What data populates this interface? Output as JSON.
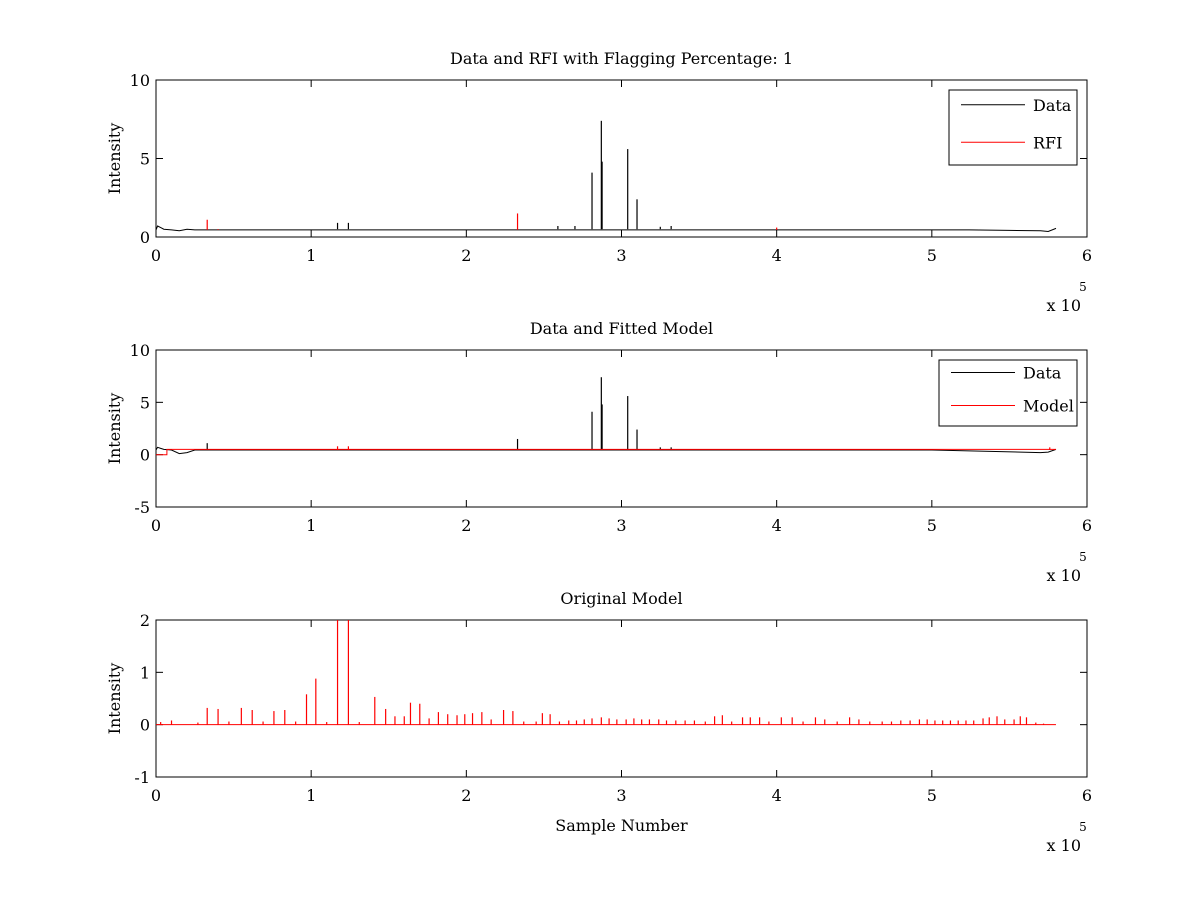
{
  "figure": {
    "background": "#ffffff",
    "axis_color": "#000000"
  },
  "chart_data": [
    {
      "type": "line",
      "title": "Data and RFI with Flagging Percentage: 1",
      "xlabel": "",
      "ylabel": "Intensity",
      "xlim": [
        0,
        6
      ],
      "ylim": [
        0,
        10
      ],
      "xticks": [
        "0",
        "1",
        "2",
        "3",
        "4",
        "5",
        "6"
      ],
      "yticks": [
        "0",
        "5",
        "10"
      ],
      "x_multiplier": {
        "base": "x 10",
        "exponent": "5"
      },
      "x_units_note": "x values in units of 10^5 samples",
      "legend": {
        "position": "top-right",
        "entries": [
          {
            "label": "Data",
            "color": "#000000"
          },
          {
            "label": "RFI",
            "color": "#ff0000"
          }
        ]
      },
      "series": [
        {
          "name": "Data",
          "color": "#000000",
          "baseline": 0.5,
          "x": [
            0.0,
            0.01,
            0.03,
            0.05,
            0.1,
            0.15,
            0.2,
            0.25,
            0.3,
            0.4,
            1.0,
            1.5,
            2.0,
            2.5,
            3.0,
            3.5,
            4.0,
            4.5,
            5.0,
            5.24,
            5.5,
            5.7,
            5.75,
            5.8
          ],
          "y": [
            0.45,
            0.7,
            0.6,
            0.5,
            0.45,
            0.4,
            0.5,
            0.45,
            0.45,
            0.45,
            0.45,
            0.45,
            0.45,
            0.45,
            0.45,
            0.45,
            0.45,
            0.45,
            0.45,
            0.45,
            0.42,
            0.4,
            0.35,
            0.55
          ],
          "spikes": [
            {
              "x": 1.17,
              "y": 0.9
            },
            {
              "x": 1.24,
              "y": 0.9
            },
            {
              "x": 2.59,
              "y": 0.7
            },
            {
              "x": 2.81,
              "y": 4.1
            },
            {
              "x": 2.87,
              "y": 7.4
            },
            {
              "x": 2.875,
              "y": 4.8
            },
            {
              "x": 3.04,
              "y": 5.6
            },
            {
              "x": 3.1,
              "y": 2.4
            },
            {
              "x": 3.25,
              "y": 0.65
            },
            {
              "x": 3.32,
              "y": 0.7
            },
            {
              "x": 2.7,
              "y": 0.7
            }
          ]
        },
        {
          "name": "RFI",
          "color": "#ff0000",
          "spikes": [
            {
              "x": 0.33,
              "y": 1.1
            },
            {
              "x": 0.4,
              "y": 0.5
            },
            {
              "x": 2.33,
              "y": 1.5
            },
            {
              "x": 4.0,
              "y": 0.6
            }
          ]
        }
      ]
    },
    {
      "type": "line",
      "title": "Data and Fitted Model",
      "xlabel": "",
      "ylabel": "Intensity",
      "xlim": [
        0,
        6
      ],
      "ylim": [
        -5,
        10
      ],
      "xticks": [
        "0",
        "1",
        "2",
        "3",
        "4",
        "5",
        "6"
      ],
      "yticks": [
        "-5",
        "0",
        "5",
        "10"
      ],
      "x_multiplier": {
        "base": "x 10",
        "exponent": "5"
      },
      "legend": {
        "position": "top-right",
        "entries": [
          {
            "label": "Data",
            "color": "#000000"
          },
          {
            "label": "Model",
            "color": "#ff0000"
          }
        ]
      },
      "series": [
        {
          "name": "Data",
          "color": "#000000",
          "baseline": 0.5,
          "x": [
            0.0,
            0.01,
            0.03,
            0.05,
            0.1,
            0.15,
            0.2,
            0.25,
            0.3,
            0.4,
            1.0,
            2.0,
            3.0,
            4.0,
            5.0,
            5.7,
            5.75,
            5.8
          ],
          "y": [
            0.45,
            0.7,
            0.6,
            0.5,
            0.45,
            0.1,
            0.2,
            0.45,
            0.45,
            0.45,
            0.45,
            0.45,
            0.45,
            0.45,
            0.45,
            0.2,
            0.25,
            0.5
          ],
          "spikes": [
            {
              "x": 0.33,
              "y": 1.1
            },
            {
              "x": 2.33,
              "y": 1.5
            },
            {
              "x": 2.81,
              "y": 4.1
            },
            {
              "x": 2.87,
              "y": 7.4
            },
            {
              "x": 2.875,
              "y": 4.8
            },
            {
              "x": 3.04,
              "y": 5.6
            },
            {
              "x": 3.1,
              "y": 2.4
            },
            {
              "x": 3.25,
              "y": 0.7
            },
            {
              "x": 3.32,
              "y": 0.7
            }
          ]
        },
        {
          "name": "Model",
          "color": "#ff0000",
          "x": [
            0.0,
            0.07,
            0.07,
            0.2,
            5.76,
            5.8
          ],
          "y": [
            0.0,
            0.0,
            0.5,
            0.5,
            0.5,
            0.5
          ],
          "spikes": [
            {
              "x": 1.17,
              "y": 0.8
            },
            {
              "x": 1.24,
              "y": 0.8
            },
            {
              "x": 5.76,
              "y": 0.7
            }
          ]
        }
      ]
    },
    {
      "type": "line",
      "title": "Original Model",
      "xlabel": "Sample Number",
      "ylabel": "Intensity",
      "xlim": [
        0,
        6
      ],
      "ylim": [
        -1,
        2
      ],
      "xticks": [
        "0",
        "1",
        "2",
        "3",
        "4",
        "5",
        "6"
      ],
      "yticks": [
        "-1",
        "0",
        "1",
        "2"
      ],
      "x_multiplier": {
        "base": "x 10",
        "exponent": "5"
      },
      "series": [
        {
          "name": "",
          "color": "#ff0000",
          "baseline": 0.0,
          "x_end": 5.8,
          "spikes": [
            {
              "x": 0.03,
              "y": 0.05
            },
            {
              "x": 0.1,
              "y": 0.08
            },
            {
              "x": 0.27,
              "y": 0.04
            },
            {
              "x": 0.33,
              "y": 0.32
            },
            {
              "x": 0.4,
              "y": 0.3
            },
            {
              "x": 0.47,
              "y": 0.06
            },
            {
              "x": 0.55,
              "y": 0.32
            },
            {
              "x": 0.62,
              "y": 0.28
            },
            {
              "x": 0.69,
              "y": 0.06
            },
            {
              "x": 0.76,
              "y": 0.26
            },
            {
              "x": 0.83,
              "y": 0.28
            },
            {
              "x": 0.9,
              "y": 0.06
            },
            {
              "x": 0.97,
              "y": 0.58
            },
            {
              "x": 1.03,
              "y": 0.88
            },
            {
              "x": 1.1,
              "y": 0.05
            },
            {
              "x": 1.17,
              "y": 2.0
            },
            {
              "x": 1.24,
              "y": 2.0
            },
            {
              "x": 1.31,
              "y": 0.05
            },
            {
              "x": 1.41,
              "y": 0.53
            },
            {
              "x": 1.48,
              "y": 0.3
            },
            {
              "x": 1.54,
              "y": 0.16
            },
            {
              "x": 1.6,
              "y": 0.16
            },
            {
              "x": 1.64,
              "y": 0.42
            },
            {
              "x": 1.7,
              "y": 0.4
            },
            {
              "x": 1.76,
              "y": 0.12
            },
            {
              "x": 1.82,
              "y": 0.24
            },
            {
              "x": 1.88,
              "y": 0.2
            },
            {
              "x": 1.94,
              "y": 0.18
            },
            {
              "x": 1.99,
              "y": 0.2
            },
            {
              "x": 2.04,
              "y": 0.22
            },
            {
              "x": 2.1,
              "y": 0.24
            },
            {
              "x": 2.16,
              "y": 0.1
            },
            {
              "x": 2.24,
              "y": 0.28
            },
            {
              "x": 2.3,
              "y": 0.26
            },
            {
              "x": 2.37,
              "y": 0.06
            },
            {
              "x": 2.45,
              "y": 0.06
            },
            {
              "x": 2.49,
              "y": 0.22
            },
            {
              "x": 2.54,
              "y": 0.2
            },
            {
              "x": 2.6,
              "y": 0.06
            },
            {
              "x": 2.66,
              "y": 0.08
            },
            {
              "x": 2.71,
              "y": 0.08
            },
            {
              "x": 2.76,
              "y": 0.1
            },
            {
              "x": 2.81,
              "y": 0.12
            },
            {
              "x": 2.87,
              "y": 0.14
            },
            {
              "x": 2.92,
              "y": 0.12
            },
            {
              "x": 2.97,
              "y": 0.1
            },
            {
              "x": 3.03,
              "y": 0.1
            },
            {
              "x": 3.08,
              "y": 0.12
            },
            {
              "x": 3.13,
              "y": 0.1
            },
            {
              "x": 3.18,
              "y": 0.1
            },
            {
              "x": 3.24,
              "y": 0.1
            },
            {
              "x": 3.29,
              "y": 0.08
            },
            {
              "x": 3.35,
              "y": 0.08
            },
            {
              "x": 3.41,
              "y": 0.08
            },
            {
              "x": 3.47,
              "y": 0.08
            },
            {
              "x": 3.54,
              "y": 0.06
            },
            {
              "x": 3.6,
              "y": 0.16
            },
            {
              "x": 3.65,
              "y": 0.18
            },
            {
              "x": 3.71,
              "y": 0.06
            },
            {
              "x": 3.78,
              "y": 0.14
            },
            {
              "x": 3.83,
              "y": 0.14
            },
            {
              "x": 3.89,
              "y": 0.14
            },
            {
              "x": 3.95,
              "y": 0.06
            },
            {
              "x": 4.03,
              "y": 0.14
            },
            {
              "x": 4.1,
              "y": 0.14
            },
            {
              "x": 4.17,
              "y": 0.06
            },
            {
              "x": 4.25,
              "y": 0.14
            },
            {
              "x": 4.31,
              "y": 0.1
            },
            {
              "x": 4.39,
              "y": 0.06
            },
            {
              "x": 4.47,
              "y": 0.14
            },
            {
              "x": 4.53,
              "y": 0.1
            },
            {
              "x": 4.6,
              "y": 0.06
            },
            {
              "x": 4.68,
              "y": 0.06
            },
            {
              "x": 4.74,
              "y": 0.06
            },
            {
              "x": 4.8,
              "y": 0.08
            },
            {
              "x": 4.86,
              "y": 0.08
            },
            {
              "x": 4.92,
              "y": 0.1
            },
            {
              "x": 4.97,
              "y": 0.1
            },
            {
              "x": 5.02,
              "y": 0.08
            },
            {
              "x": 5.07,
              "y": 0.08
            },
            {
              "x": 5.12,
              "y": 0.08
            },
            {
              "x": 5.17,
              "y": 0.08
            },
            {
              "x": 5.22,
              "y": 0.08
            },
            {
              "x": 5.27,
              "y": 0.08
            },
            {
              "x": 5.33,
              "y": 0.12
            },
            {
              "x": 5.37,
              "y": 0.14
            },
            {
              "x": 5.42,
              "y": 0.16
            },
            {
              "x": 5.47,
              "y": 0.1
            },
            {
              "x": 5.53,
              "y": 0.1
            },
            {
              "x": 5.57,
              "y": 0.16
            },
            {
              "x": 5.61,
              "y": 0.14
            },
            {
              "x": 5.67,
              "y": 0.04
            },
            {
              "x": 5.72,
              "y": 0.02
            }
          ]
        }
      ]
    }
  ]
}
